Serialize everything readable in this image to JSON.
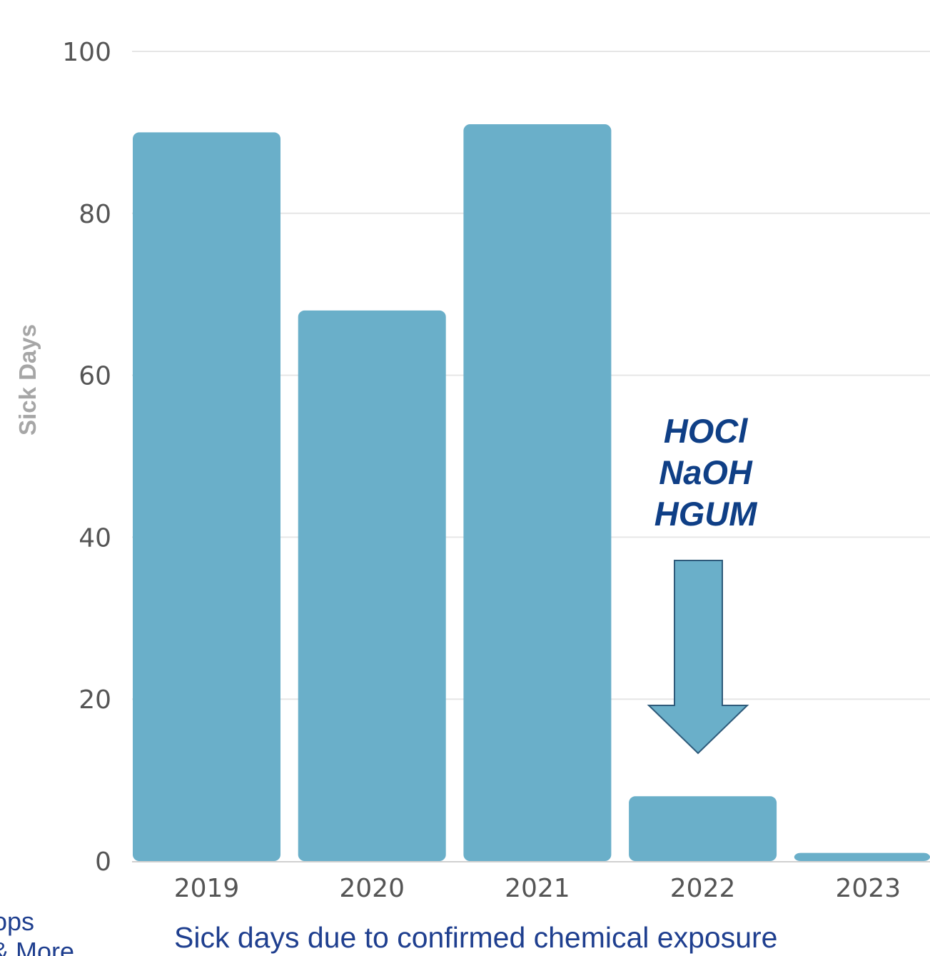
{
  "chart_data": {
    "type": "bar",
    "categories": [
      "2019",
      "2020",
      "2021",
      "2022",
      "2023"
    ],
    "values": [
      90,
      68,
      91,
      8,
      1
    ],
    "ylabel": "Sick Days",
    "xlabel": "",
    "ylim": [
      0,
      100
    ],
    "yticks": [
      "0",
      "20",
      "40",
      "60",
      "80",
      "100"
    ],
    "grid": true,
    "annotation": {
      "lines": [
        "HOCl",
        "NaOH",
        "HGUM"
      ],
      "target_category": "2022"
    },
    "caption": "Sick days due to confirmed chemical exposure",
    "side_text": [
      "ops",
      "& More"
    ]
  },
  "colors": {
    "bar": "#6aafc9",
    "grid": "#e6e6e6",
    "tick": "#555555",
    "ylabel": "#a6a6a6",
    "annotation": "#0f3f86",
    "caption": "#1f3f8f",
    "arrow_fill": "#6aafc9",
    "arrow_stroke": "#2e5a7a"
  }
}
